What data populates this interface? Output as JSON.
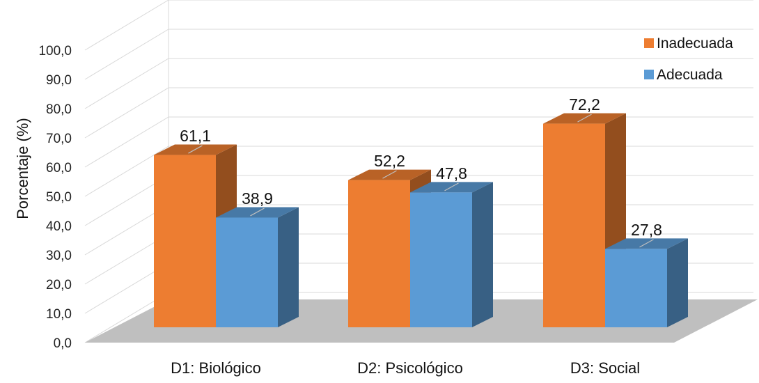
{
  "chart_data": {
    "type": "bar",
    "style": "3d-clustered-column",
    "categories": [
      "D1: Biológico",
      "D2: Psicológico",
      "D3: Social"
    ],
    "series": [
      {
        "name": "Inadecuada",
        "values": [
          61.1,
          52.2,
          72.2
        ],
        "color": "#ED7D31"
      },
      {
        "name": "Adecuada",
        "values": [
          38.9,
          47.8,
          27.8
        ],
        "color": "#5B9BD5"
      }
    ],
    "data_labels": [
      [
        "61,1",
        "52,2",
        "72,2"
      ],
      [
        "38,9",
        "47,8",
        "27,8"
      ]
    ],
    "ylabel": "Porcentaje (%)",
    "ylim": [
      0,
      100
    ],
    "yticks": [
      "0,0",
      "10,0",
      "20,0",
      "30,0",
      "40,0",
      "50,0",
      "60,0",
      "70,0",
      "80,0",
      "90,0",
      "100,0"
    ],
    "grid": true,
    "legend": "top-right",
    "floor_color": "#BFBFBF"
  }
}
